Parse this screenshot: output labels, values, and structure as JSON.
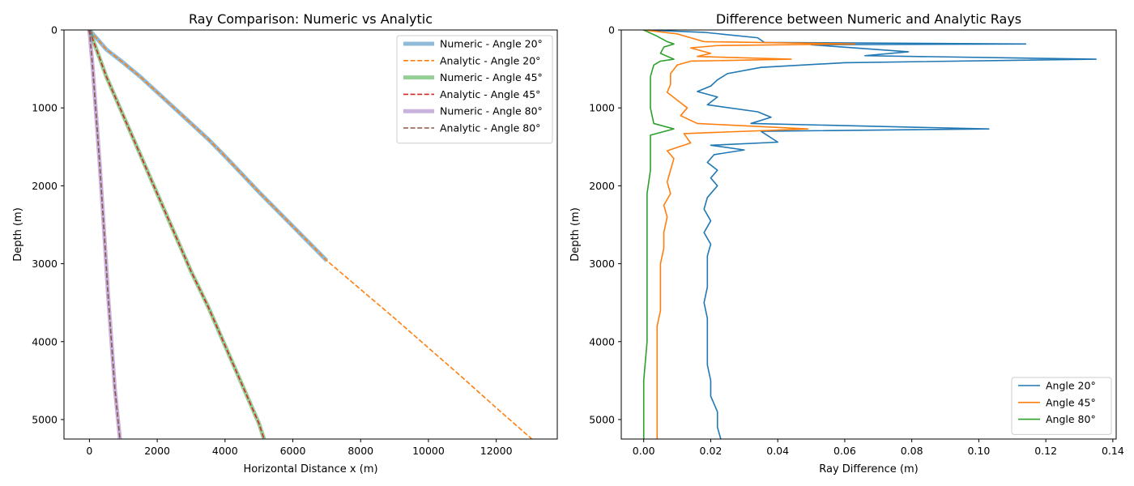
{
  "chart_data": [
    {
      "type": "line",
      "title": "Ray Comparison: Numeric vs Analytic",
      "xlabel": "Horizontal Distance x (m)",
      "ylabel": "Depth (m)",
      "xlim": [
        -750,
        13800
      ],
      "ylim": [
        5250,
        0
      ],
      "y_inverted": true,
      "xticks": [
        "0",
        "2000",
        "4000",
        "6000",
        "8000",
        "10000",
        "12000"
      ],
      "xtick_values": [
        0,
        2000,
        4000,
        6000,
        8000,
        10000,
        12000
      ],
      "yticks": [
        "0",
        "1000",
        "2000",
        "3000",
        "4000",
        "5000"
      ],
      "ytick_values": [
        0,
        1000,
        2000,
        3000,
        4000,
        5000
      ],
      "legend_position": "upper right",
      "series": [
        {
          "name": "Numeric - Angle 20°",
          "color": "#1f77b4",
          "style": "thick",
          "points": [
            [
              0,
              0
            ],
            [
              500,
              250
            ],
            [
              1000,
              420
            ],
            [
              1500,
              600
            ],
            [
              2000,
              800
            ],
            [
              2500,
              1000
            ],
            [
              3000,
              1200
            ],
            [
              3500,
              1400
            ],
            [
              4000,
              1620
            ],
            [
              4500,
              1850
            ],
            [
              5000,
              2080
            ],
            [
              5500,
              2300
            ],
            [
              6000,
              2520
            ],
            [
              6500,
              2740
            ],
            [
              7000,
              2960
            ]
          ]
        },
        {
          "name": "Analytic - Angle 20°",
          "color": "#ff7f0e",
          "style": "dashed",
          "points": [
            [
              0,
              0
            ],
            [
              500,
              250
            ],
            [
              1000,
              420
            ],
            [
              1500,
              600
            ],
            [
              2000,
              800
            ],
            [
              2500,
              1000
            ],
            [
              3000,
              1200
            ],
            [
              3500,
              1400
            ],
            [
              4000,
              1620
            ],
            [
              4500,
              1850
            ],
            [
              5000,
              2080
            ],
            [
              5500,
              2300
            ],
            [
              6000,
              2520
            ],
            [
              6500,
              2740
            ],
            [
              7000,
              2960
            ],
            [
              8000,
              3330
            ],
            [
              9000,
              3700
            ],
            [
              10000,
              4080
            ],
            [
              11000,
              4460
            ],
            [
              12000,
              4850
            ],
            [
              13050,
              5250
            ]
          ]
        },
        {
          "name": "Numeric - Angle 45°",
          "color": "#2ca02c",
          "style": "thick",
          "points": [
            [
              0,
              0
            ],
            [
              500,
              600
            ],
            [
              1000,
              1100
            ],
            [
              1500,
              1600
            ],
            [
              2000,
              2100
            ],
            [
              2500,
              2600
            ],
            [
              3000,
              3100
            ],
            [
              3500,
              3550
            ],
            [
              4000,
              4050
            ],
            [
              4500,
              4550
            ],
            [
              5000,
              5050
            ],
            [
              5150,
              5250
            ]
          ]
        },
        {
          "name": "Analytic - Angle 45°",
          "color": "#d62728",
          "style": "dashed",
          "points": [
            [
              0,
              0
            ],
            [
              500,
              600
            ],
            [
              1000,
              1100
            ],
            [
              1500,
              1600
            ],
            [
              2000,
              2100
            ],
            [
              2500,
              2600
            ],
            [
              3000,
              3100
            ],
            [
              3500,
              3550
            ],
            [
              4000,
              4050
            ],
            [
              4500,
              4550
            ],
            [
              5000,
              5050
            ],
            [
              5150,
              5250
            ]
          ]
        },
        {
          "name": "Numeric - Angle 80°",
          "color": "#9467bd",
          "style": "thick",
          "points": [
            [
              0,
              0
            ],
            [
              100,
              500
            ],
            [
              200,
              1100
            ],
            [
              300,
              1700
            ],
            [
              450,
              2700
            ],
            [
              550,
              3400
            ],
            [
              650,
              4000
            ],
            [
              750,
              4600
            ],
            [
              900,
              5250
            ]
          ]
        },
        {
          "name": "Analytic - Angle 80°",
          "color": "#8c564b",
          "style": "dashed",
          "points": [
            [
              0,
              0
            ],
            [
              100,
              500
            ],
            [
              200,
              1100
            ],
            [
              300,
              1700
            ],
            [
              450,
              2700
            ],
            [
              550,
              3400
            ],
            [
              650,
              4000
            ],
            [
              750,
              4600
            ],
            [
              900,
              5250
            ]
          ]
        }
      ]
    },
    {
      "type": "line",
      "title": "Difference between Numeric and Analytic Rays",
      "xlabel": "Ray Difference (m)",
      "ylabel": "Depth (m)",
      "xlim": [
        -0.0067,
        0.141
      ],
      "ylim": [
        5250,
        0
      ],
      "y_inverted": true,
      "xticks": [
        "0.00",
        "0.02",
        "0.04",
        "0.06",
        "0.08",
        "0.10",
        "0.12",
        "0.14"
      ],
      "xtick_values": [
        0,
        0.02,
        0.04,
        0.06,
        0.08,
        0.1,
        0.12,
        0.14
      ],
      "yticks": [
        "0",
        "1000",
        "2000",
        "3000",
        "4000",
        "5000"
      ],
      "ytick_values": [
        0,
        1000,
        2000,
        3000,
        4000,
        5000
      ],
      "legend_position": "lower right",
      "series": [
        {
          "name": "Angle 20°",
          "color": "#1f77b4",
          "points": [
            [
              0.0,
              0
            ],
            [
              0.018,
              30
            ],
            [
              0.034,
              100
            ],
            [
              0.036,
              160
            ],
            [
              0.114,
              180
            ],
            [
              0.05,
              190
            ],
            [
              0.079,
              280
            ],
            [
              0.066,
              330
            ],
            [
              0.135,
              375
            ],
            [
              0.06,
              420
            ],
            [
              0.035,
              480
            ],
            [
              0.025,
              560
            ],
            [
              0.022,
              640
            ],
            [
              0.02,
              720
            ],
            [
              0.016,
              790
            ],
            [
              0.022,
              860
            ],
            [
              0.019,
              960
            ],
            [
              0.034,
              1050
            ],
            [
              0.038,
              1120
            ],
            [
              0.032,
              1200
            ],
            [
              0.103,
              1270
            ],
            [
              0.035,
              1300
            ],
            [
              0.04,
              1440
            ],
            [
              0.02,
              1480
            ],
            [
              0.03,
              1540
            ],
            [
              0.021,
              1600
            ],
            [
              0.019,
              1700
            ],
            [
              0.022,
              1800
            ],
            [
              0.02,
              1900
            ],
            [
              0.022,
              2000
            ],
            [
              0.019,
              2150
            ],
            [
              0.018,
              2300
            ],
            [
              0.02,
              2450
            ],
            [
              0.018,
              2600
            ],
            [
              0.02,
              2750
            ],
            [
              0.019,
              2900
            ],
            [
              0.019,
              3100
            ],
            [
              0.019,
              3300
            ],
            [
              0.018,
              3500
            ],
            [
              0.019,
              3700
            ],
            [
              0.019,
              3900
            ],
            [
              0.019,
              4100
            ],
            [
              0.019,
              4300
            ],
            [
              0.02,
              4500
            ],
            [
              0.02,
              4700
            ],
            [
              0.022,
              4900
            ],
            [
              0.022,
              5100
            ],
            [
              0.023,
              5250
            ]
          ]
        },
        {
          "name": "Angle 45°",
          "color": "#ff7f0e",
          "points": [
            [
              0.0,
              0
            ],
            [
              0.01,
              50
            ],
            [
              0.014,
              100
            ],
            [
              0.018,
              150
            ],
            [
              0.063,
              180
            ],
            [
              0.022,
              200
            ],
            [
              0.014,
              230
            ],
            [
              0.02,
              300
            ],
            [
              0.016,
              340
            ],
            [
              0.044,
              375
            ],
            [
              0.014,
              400
            ],
            [
              0.01,
              450
            ],
            [
              0.008,
              560
            ],
            [
              0.008,
              700
            ],
            [
              0.007,
              800
            ],
            [
              0.01,
              900
            ],
            [
              0.013,
              1000
            ],
            [
              0.011,
              1100
            ],
            [
              0.016,
              1200
            ],
            [
              0.049,
              1270
            ],
            [
              0.012,
              1330
            ],
            [
              0.014,
              1450
            ],
            [
              0.007,
              1550
            ],
            [
              0.009,
              1650
            ],
            [
              0.008,
              1800
            ],
            [
              0.007,
              1950
            ],
            [
              0.008,
              2100
            ],
            [
              0.006,
              2250
            ],
            [
              0.007,
              2400
            ],
            [
              0.006,
              2600
            ],
            [
              0.006,
              2800
            ],
            [
              0.005,
              3000
            ],
            [
              0.005,
              3200
            ],
            [
              0.005,
              3400
            ],
            [
              0.005,
              3600
            ],
            [
              0.004,
              3800
            ],
            [
              0.004,
              4000
            ],
            [
              0.004,
              4200
            ],
            [
              0.004,
              4400
            ],
            [
              0.004,
              4600
            ],
            [
              0.004,
              4800
            ],
            [
              0.004,
              5000
            ],
            [
              0.004,
              5250
            ]
          ]
        },
        {
          "name": "Angle 80°",
          "color": "#2ca02c",
          "points": [
            [
              0.0,
              0
            ],
            [
              0.004,
              80
            ],
            [
              0.007,
              150
            ],
            [
              0.009,
              180
            ],
            [
              0.006,
              220
            ],
            [
              0.005,
              300
            ],
            [
              0.009,
              375
            ],
            [
              0.005,
              400
            ],
            [
              0.003,
              450
            ],
            [
              0.002,
              600
            ],
            [
              0.002,
              800
            ],
            [
              0.002,
              1000
            ],
            [
              0.003,
              1200
            ],
            [
              0.009,
              1270
            ],
            [
              0.002,
              1350
            ],
            [
              0.002,
              1500
            ],
            [
              0.002,
              1800
            ],
            [
              0.001,
              2100
            ],
            [
              0.001,
              2500
            ],
            [
              0.001,
              3000
            ],
            [
              0.001,
              3500
            ],
            [
              0.001,
              4000
            ],
            [
              0.0,
              4500
            ],
            [
              0.0,
              5000
            ],
            [
              0.0,
              5250
            ]
          ]
        }
      ]
    }
  ]
}
